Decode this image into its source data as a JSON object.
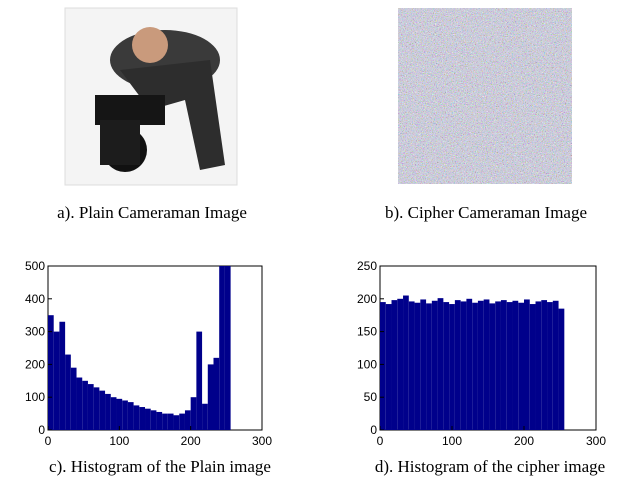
{
  "captions": [
    "a). Plain Cameraman Image",
    "b). Cipher Cameraman Image",
    "c). Histogram of the Plain image",
    "d). Histogram of the cipher image"
  ],
  "chart_data": [
    {
      "type": "histogram",
      "color": "#00008b",
      "bins": [
        0,
        8,
        16,
        24,
        32,
        40,
        48,
        56,
        64,
        72,
        80,
        88,
        96,
        104,
        112,
        120,
        128,
        136,
        144,
        152,
        160,
        168,
        176,
        184,
        192,
        200,
        208,
        216,
        224,
        232,
        240,
        248,
        256
      ],
      "values": [
        350,
        300,
        330,
        230,
        190,
        160,
        150,
        140,
        130,
        120,
        110,
        100,
        95,
        90,
        85,
        75,
        70,
        65,
        60,
        55,
        50,
        50,
        45,
        50,
        60,
        100,
        300,
        80,
        200,
        220,
        500,
        500
      ],
      "xlim": [
        0,
        300
      ],
      "xticks": [
        0,
        100,
        200,
        300
      ],
      "ylim": [
        0,
        500
      ],
      "yticks": [
        0,
        100,
        200,
        300,
        400,
        500
      ]
    },
    {
      "type": "histogram",
      "color": "#00008b",
      "bins": [
        0,
        8,
        16,
        24,
        32,
        40,
        48,
        56,
        64,
        72,
        80,
        88,
        96,
        104,
        112,
        120,
        128,
        136,
        144,
        152,
        160,
        168,
        176,
        184,
        192,
        200,
        208,
        216,
        224,
        232,
        240,
        248,
        256
      ],
      "values": [
        195,
        192,
        198,
        200,
        205,
        196,
        194,
        199,
        193,
        197,
        201,
        195,
        192,
        198,
        196,
        200,
        194,
        197,
        199,
        193,
        196,
        198,
        195,
        197,
        194,
        199,
        192,
        196,
        198,
        195,
        197,
        185
      ],
      "xlim": [
        0,
        300
      ],
      "xticks": [
        0,
        100,
        200,
        300
      ],
      "ylim": [
        0,
        250
      ],
      "yticks": [
        0,
        50,
        100,
        150,
        200,
        250
      ]
    }
  ]
}
